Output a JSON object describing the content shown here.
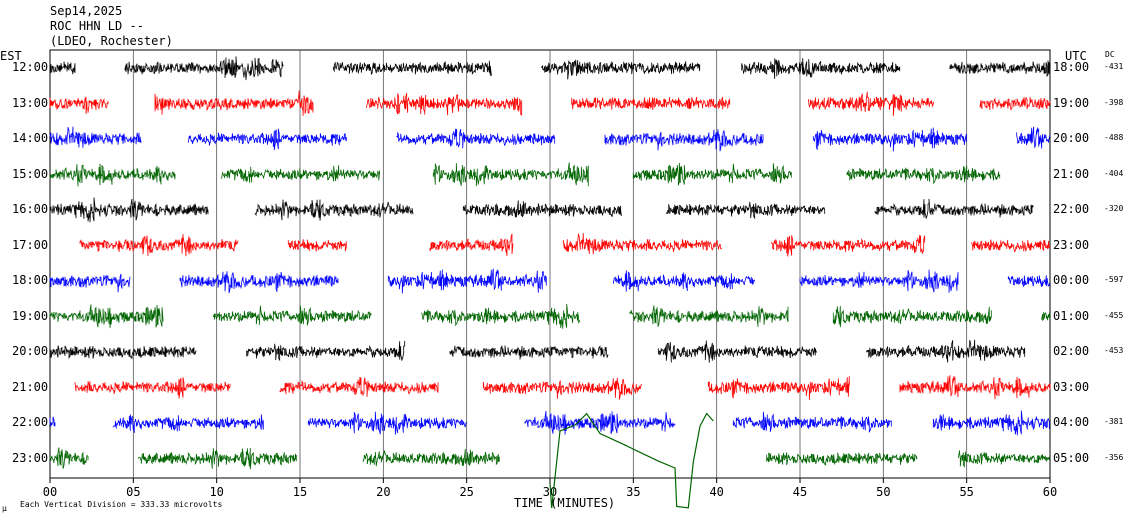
{
  "header": {
    "date": "Sep14,2025",
    "station": "ROC HHN LD --",
    "network": "(LDEO, Rochester)"
  },
  "axis": {
    "left_zone": "EST",
    "right_zone": "UTC",
    "dc_label": "DC",
    "xlabel": "TIME (MINUTES)"
  },
  "footer": {
    "mark": "µ",
    "scale_note": "Each Vertical Division = 333.33 microvolts"
  },
  "chart_data": {
    "type": "line",
    "x_ticks": [
      "00",
      "05",
      "10",
      "15",
      "20",
      "25",
      "30",
      "35",
      "40",
      "45",
      "50",
      "55",
      "60"
    ],
    "xlim": [
      0,
      60
    ],
    "grid": "vertical lines every 5 minutes",
    "trace_colors": [
      "#000000",
      "#ff0000",
      "#0000ff",
      "#006400"
    ],
    "rows": [
      {
        "est": "12:00",
        "utc": "18:00",
        "dc": "-431",
        "color": "#000000",
        "segments": [
          [
            0,
            1.5
          ],
          [
            4.5,
            14
          ],
          [
            17,
            26.5
          ],
          [
            29.5,
            39
          ],
          [
            41.5,
            51
          ],
          [
            54,
            60
          ]
        ]
      },
      {
        "est": "13:00",
        "utc": "19:00",
        "dc": "-398",
        "color": "#ff0000",
        "segments": [
          [
            0,
            3.5
          ],
          [
            6.3,
            15.8
          ],
          [
            19,
            28.3
          ],
          [
            31.3,
            40.8
          ],
          [
            45.5,
            53
          ],
          [
            55.8,
            60
          ]
        ]
      },
      {
        "est": "14:00",
        "utc": "20:00",
        "dc": "-488",
        "color": "#0000ff",
        "segments": [
          [
            0,
            5.5
          ],
          [
            8.3,
            17.8
          ],
          [
            20.8,
            30.3
          ],
          [
            33.3,
            42.8
          ],
          [
            45.8,
            55
          ],
          [
            58,
            60
          ]
        ]
      },
      {
        "est": "15:00",
        "utc": "21:00",
        "dc": "-404",
        "color": "#006400",
        "segments": [
          [
            0,
            7.5
          ],
          [
            10.3,
            19.8
          ],
          [
            23,
            32.3
          ],
          [
            35,
            44.5
          ],
          [
            47.8,
            57
          ],
          [
            60,
            60
          ]
        ]
      },
      {
        "est": "16:00",
        "utc": "22:00",
        "dc": "-320",
        "color": "#000000",
        "segments": [
          [
            0,
            9.5
          ],
          [
            12.3,
            21.8
          ],
          [
            24.8,
            34.3
          ],
          [
            37,
            46.5
          ],
          [
            49.5,
            59
          ]
        ]
      },
      {
        "est": "17:00",
        "utc": "23:00",
        "dc": "",
        "color": "#ff0000",
        "segments": [
          [
            1.8,
            11.3
          ],
          [
            14.3,
            17.8
          ],
          [
            22.8,
            27.8
          ],
          [
            30.8,
            40.3
          ],
          [
            43.3,
            52.5
          ],
          [
            55.3,
            60
          ]
        ]
      },
      {
        "est": "18:00",
        "utc": "00:00",
        "dc": "-597",
        "color": "#0000ff",
        "segments": [
          [
            0,
            4.8
          ],
          [
            7.8,
            17.3
          ],
          [
            20.3,
            29.8
          ],
          [
            33.8,
            42.3
          ],
          [
            45,
            54.5
          ],
          [
            57.5,
            60
          ]
        ]
      },
      {
        "est": "19:00",
        "utc": "01:00",
        "dc": "-455",
        "color": "#006400",
        "segments": [
          [
            0,
            6.8
          ],
          [
            9.8,
            19.3
          ],
          [
            22.3,
            31.8
          ],
          [
            34.8,
            44.3
          ],
          [
            47,
            56.5
          ],
          [
            59.5,
            60
          ]
        ]
      },
      {
        "est": "20:00",
        "utc": "02:00",
        "dc": "-453",
        "color": "#000000",
        "segments": [
          [
            0,
            8.8
          ],
          [
            11.8,
            21.3
          ],
          [
            24,
            33.5
          ],
          [
            36.5,
            46
          ],
          [
            49,
            58.5
          ]
        ]
      },
      {
        "est": "21:00",
        "utc": "03:00",
        "dc": "",
        "color": "#ff0000",
        "segments": [
          [
            1.5,
            10.8
          ],
          [
            13.8,
            23.3
          ],
          [
            26,
            35.5
          ],
          [
            39.5,
            48
          ],
          [
            51,
            60
          ]
        ]
      },
      {
        "est": "22:00",
        "utc": "04:00",
        "dc": "-381",
        "color": "#0000ff",
        "segments": [
          [
            0,
            0.3
          ],
          [
            3.8,
            12.8
          ],
          [
            15.5,
            25
          ],
          [
            28.5,
            37.5
          ],
          [
            41,
            50.5
          ],
          [
            53,
            60
          ]
        ]
      },
      {
        "est": "23:00",
        "utc": "05:00",
        "dc": "-356",
        "color": "#006400",
        "segments": [
          [
            0,
            2.3
          ],
          [
            5.3,
            14.8
          ],
          [
            18.8,
            27
          ],
          [
            43,
            52
          ],
          [
            54.5,
            60
          ]
        ]
      }
    ],
    "annotations": [
      {
        "type": "slow excursion",
        "row": "22:00",
        "x_range": [
          30,
          40
        ],
        "color": "#006400"
      }
    ]
  }
}
